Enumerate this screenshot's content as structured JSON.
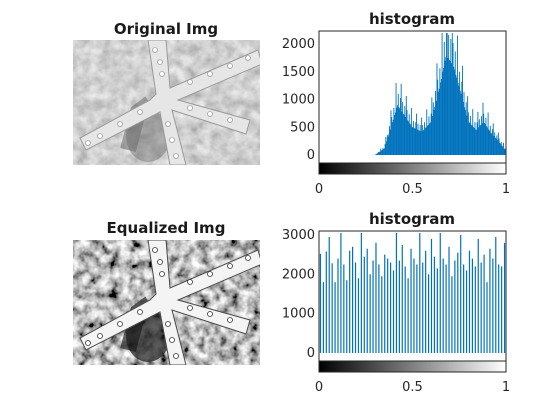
{
  "panels": {
    "original_title": "Original Img",
    "equalized_title": "Equalized Img"
  },
  "chart_data": [
    {
      "type": "bar",
      "title": "histogram",
      "xlabel": "",
      "ylabel": "",
      "xlim": [
        0,
        1
      ],
      "ylim": [
        0,
        2200
      ],
      "xticks": [
        "0",
        "0.5",
        "1"
      ],
      "yticks": [
        "0",
        "500",
        "1000",
        "1500",
        "2000"
      ],
      "ytick_values": [
        0,
        500,
        1000,
        1500,
        2000
      ],
      "bar_color": "#0072bd",
      "bins": 256,
      "description": "Most pixels lie between intensity 0.35 and 1; broad peak near 0.68",
      "approx_profile": [
        {
          "x": 0.3,
          "y": 0
        },
        {
          "x": 0.35,
          "y": 120
        },
        {
          "x": 0.38,
          "y": 450
        },
        {
          "x": 0.42,
          "y": 900
        },
        {
          "x": 0.46,
          "y": 700
        },
        {
          "x": 0.5,
          "y": 500
        },
        {
          "x": 0.55,
          "y": 420
        },
        {
          "x": 0.6,
          "y": 600
        },
        {
          "x": 0.65,
          "y": 1300
        },
        {
          "x": 0.68,
          "y": 1800
        },
        {
          "x": 0.72,
          "y": 1600
        },
        {
          "x": 0.76,
          "y": 1100
        },
        {
          "x": 0.8,
          "y": 600
        },
        {
          "x": 0.84,
          "y": 450
        },
        {
          "x": 0.88,
          "y": 600
        },
        {
          "x": 0.92,
          "y": 400
        },
        {
          "x": 0.96,
          "y": 250
        },
        {
          "x": 1.0,
          "y": 80
        }
      ],
      "max_spike": 2200
    },
    {
      "type": "bar",
      "title": "histogram",
      "xlabel": "",
      "ylabel": "",
      "xlim": [
        0,
        1
      ],
      "ylim": [
        0,
        3050
      ],
      "xticks": [
        "0",
        "0.5",
        "1"
      ],
      "yticks": [
        "0",
        "1000",
        "2000",
        "3000"
      ],
      "ytick_values": [
        0,
        1000,
        2000,
        3000
      ],
      "bar_color": "#0072bd",
      "bins": 64,
      "description": "Sparse equalized histogram; spikes spread across full range, heights ~1800-3050",
      "heights": [
        2520,
        1800,
        2580,
        2950,
        2280,
        1800,
        2400,
        3050,
        2250,
        1850,
        2600,
        2700,
        2300,
        1900,
        3050,
        2450,
        2650,
        2000,
        2350,
        2800,
        2250,
        1950,
        2500,
        2400,
        2300,
        2100,
        3050,
        2350,
        2750,
        2200,
        1900,
        2650,
        2400,
        2250,
        3050,
        2300,
        2600,
        2000,
        2900,
        2450,
        2150,
        3050,
        2400,
        2250,
        2700,
        1950,
        2350,
        2550,
        3000,
        2250,
        2100,
        2600,
        2400,
        2200,
        2900,
        2300,
        2500,
        1800,
        2650,
        2400,
        2950,
        2250,
        2200,
        2800
      ]
    }
  ]
}
